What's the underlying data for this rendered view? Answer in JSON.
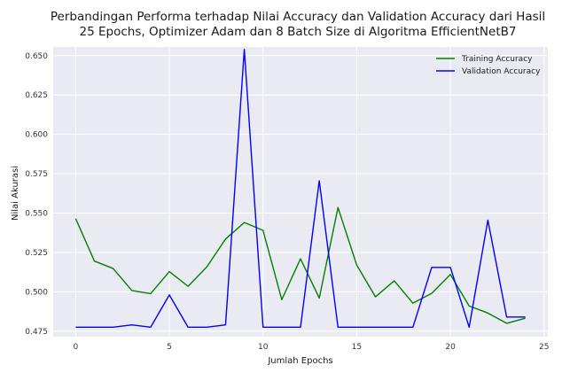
{
  "chart_data": {
    "type": "line",
    "title_lines": [
      "Perbandingan Performa terhadap Nilai Accuracy dan Validation Accuracy dari Hasil",
      "25 Epochs, Optimizer Adam dan 8 Batch Size di Algoritma EfficientNetB7"
    ],
    "xlabel": "Jumlah Epochs",
    "ylabel": "Nilai Akurasi",
    "xlim": [
      -1.2,
      25.2
    ],
    "ylim": [
      0.4715,
      0.6555
    ],
    "x_ticks": [
      0,
      5,
      10,
      15,
      20,
      25
    ],
    "y_ticks": [
      0.475,
      0.5,
      0.525,
      0.55,
      0.575,
      0.6,
      0.625,
      0.65
    ],
    "y_tick_labels": [
      "0.475",
      "0.500",
      "0.525",
      "0.550",
      "0.575",
      "0.600",
      "0.625",
      "0.650"
    ],
    "grid": true,
    "legend_position": "top-right",
    "x": [
      0,
      1,
      2,
      3,
      4,
      5,
      6,
      7,
      8,
      9,
      10,
      11,
      12,
      13,
      14,
      15,
      16,
      17,
      18,
      19,
      20,
      21,
      22,
      23,
      24
    ],
    "series": [
      {
        "name": "Training Accuracy",
        "color": "#008000",
        "values": [
          0.5465,
          0.5195,
          0.5148,
          0.5008,
          0.4988,
          0.5128,
          0.5035,
          0.5158,
          0.5335,
          0.544,
          0.539,
          0.495,
          0.521,
          0.496,
          0.5535,
          0.517,
          0.4968,
          0.507,
          0.4928,
          0.499,
          0.511,
          0.491,
          0.4865,
          0.48,
          0.4832
        ]
      },
      {
        "name": "Validation Accuracy",
        "color": "#0000ff",
        "values": [
          0.4775,
          0.4775,
          0.4775,
          0.479,
          0.4775,
          0.498,
          0.4775,
          0.4775,
          0.479,
          0.654,
          0.4775,
          0.4775,
          0.4775,
          0.5705,
          0.4775,
          0.4775,
          0.4775,
          0.4775,
          0.4775,
          0.5155,
          0.5155,
          0.4775,
          0.5455,
          0.484,
          0.484
        ]
      }
    ]
  }
}
